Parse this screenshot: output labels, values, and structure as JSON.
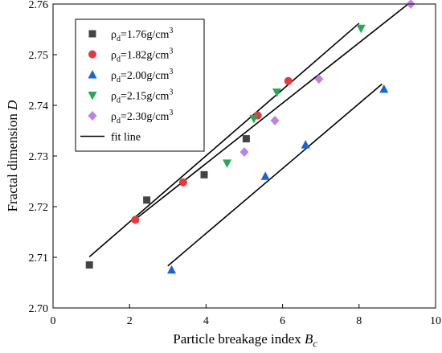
{
  "chart_data": {
    "type": "scatter",
    "xlabel": {
      "text": "Particle breakage index ",
      "var": "B",
      "sub": "c"
    },
    "ylabel": {
      "text": "Fractal dimension ",
      "var": "D"
    },
    "xlim": [
      0,
      10
    ],
    "ylim": [
      2.7,
      2.76
    ],
    "xticks": [
      "0",
      "2",
      "4",
      "6",
      "8",
      "10"
    ],
    "yticks": [
      "2.70",
      "2.71",
      "2.72",
      "2.73",
      "2.74",
      "2.75",
      "2.76"
    ],
    "grid": false,
    "legend_position": "top-left",
    "series": [
      {
        "name": "ρd=1.76g/cm3",
        "label": {
          "rho": "ρ",
          "sub": "d",
          "mid": "=1.76g/cm",
          "sup": "3"
        },
        "marker": "square",
        "color": "#444444",
        "points": [
          [
            0.95,
            2.7085
          ],
          [
            2.45,
            2.7213
          ],
          [
            3.95,
            2.7263
          ],
          [
            5.05,
            2.7334
          ]
        ]
      },
      {
        "name": "ρd=1.82g/cm3",
        "label": {
          "rho": "ρ",
          "sub": "d",
          "mid": "=1.82g/cm",
          "sup": "3"
        },
        "marker": "circle",
        "color": "#e8383a",
        "points": [
          [
            2.15,
            2.7174
          ],
          [
            3.4,
            2.7248
          ],
          [
            5.35,
            2.738
          ],
          [
            6.15,
            2.7448
          ]
        ]
      },
      {
        "name": "ρd=2.00g/cm3",
        "label": {
          "rho": "ρ",
          "sub": "d",
          "mid": "=2.00g/cm",
          "sup": "3"
        },
        "marker": "triangle-up",
        "color": "#1565e0",
        "points": [
          [
            3.1,
            2.7075
          ],
          [
            5.55,
            2.726
          ],
          [
            6.6,
            2.7322
          ],
          [
            8.65,
            2.7432
          ]
        ]
      },
      {
        "name": "ρd=2.15g/cm3",
        "label": {
          "rho": "ρ",
          "sub": "d",
          "mid": "=2.15g/cm",
          "sup": "3"
        },
        "marker": "triangle-down",
        "color": "#22aa55",
        "points": [
          [
            4.55,
            2.7286
          ],
          [
            5.25,
            2.7374
          ],
          [
            5.85,
            2.7426
          ],
          [
            8.05,
            2.7552
          ]
        ]
      },
      {
        "name": "ρd=2.30g/cm3",
        "label": {
          "rho": "ρ",
          "sub": "d",
          "mid": "=2.30g/cm",
          "sup": "3"
        },
        "marker": "diamond",
        "color": "#c080e8",
        "points": [
          [
            5.0,
            2.7308
          ],
          [
            5.8,
            2.737
          ],
          [
            6.95,
            2.7452
          ],
          [
            9.35,
            2.76
          ]
        ]
      }
    ],
    "fit_lines": {
      "name": "fit line",
      "color": "#000000",
      "lines": [
        [
          [
            0.95,
            2.7101
          ],
          [
            8.0,
            2.7562
          ]
        ],
        [
          [
            2.1,
            2.7172
          ],
          [
            9.3,
            2.7601
          ]
        ],
        [
          [
            3.0,
            2.7083
          ],
          [
            8.6,
            2.7442
          ]
        ]
      ]
    }
  }
}
